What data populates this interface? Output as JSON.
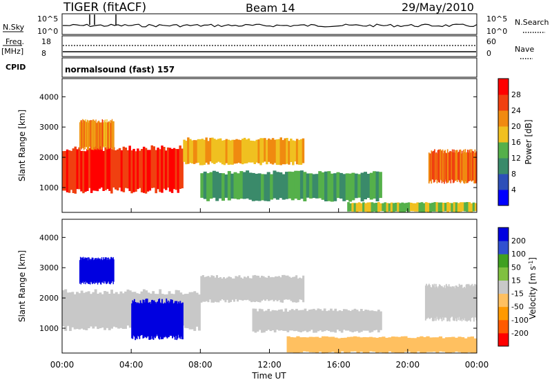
{
  "header": {
    "title": "TIGER (fitACF)",
    "beam": "Beam 14",
    "date": "29/May/2010"
  },
  "strips": {
    "nsky_label": "N.Sky",
    "nsky_tick_hi": "10^5",
    "nsky_tick_lo": "10^0",
    "nsearch_label": "N.Search",
    "freq_label_1": "Freq.",
    "freq_label_2": "[MHz]",
    "freq_tick_hi": "18",
    "freq_tick_lo": "8",
    "nave_tick_hi": "60",
    "nave_tick_lo": "0",
    "nave_label": "Nave",
    "cpid_label": "CPID",
    "cpid_value": "normalsound (fast) 157"
  },
  "colors": {
    "power_scale": [
      "#0000ff",
      "#2d4fb8",
      "#3a8a6a",
      "#55b04a",
      "#f0c020",
      "#f08a10",
      "#f04010",
      "#ff0000"
    ],
    "velocity_scale": [
      "#ff0000",
      "#ff5a00",
      "#ff9900",
      "#ffc060",
      "#c8c8c8",
      "#80c040",
      "#40a020",
      "#3050d0",
      "#0000e0"
    ]
  },
  "chart_data": [
    {
      "type": "heatmap",
      "title": "",
      "ylabel": "Slant Range [km]",
      "xlabel": "",
      "xlim": [
        "00:00",
        "24:00"
      ],
      "ylim": [
        180,
        4600
      ],
      "yticks": [
        "1000",
        "2000",
        "3000",
        "4000"
      ],
      "colorbar": {
        "label": "Power [dB]",
        "ticks": [
          "4",
          "8",
          "12",
          "16",
          "20",
          "24",
          "28"
        ],
        "range": [
          0,
          32
        ]
      },
      "regions": [
        {
          "t0": 0.0,
          "t1": 7.0,
          "r0": 900,
          "r1": 2300,
          "level": 28
        },
        {
          "t0": 7.0,
          "t1": 14.0,
          "r0": 1800,
          "r1": 2600,
          "level": 20
        },
        {
          "t0": 8.0,
          "t1": 18.5,
          "r0": 600,
          "r1": 1500,
          "level": 12
        },
        {
          "t0": 16.5,
          "t1": 24.0,
          "r0": 200,
          "r1": 500,
          "level": 16
        },
        {
          "t0": 21.2,
          "t1": 24.0,
          "r0": 1200,
          "r1": 2200,
          "level": 24
        },
        {
          "t0": 1.0,
          "t1": 3.0,
          "r0": 2300,
          "r1": 3200,
          "level": 22
        }
      ]
    },
    {
      "type": "heatmap",
      "title": "",
      "ylabel": "Slant Range [km]",
      "xlabel": "Time UT",
      "xlim": [
        "00:00",
        "24:00"
      ],
      "ylim": [
        180,
        4600
      ],
      "xticks": [
        "00:00",
        "04:00",
        "08:00",
        "12:00",
        "16:00",
        "20:00",
        "00:00"
      ],
      "yticks": [
        "1000",
        "2000",
        "3000",
        "4000"
      ],
      "colorbar": {
        "label": "Velocity [m s^-1]",
        "ticks": [
          "200",
          "100",
          "50",
          "15",
          "-15",
          "-50",
          "-100",
          "-200"
        ],
        "range": [
          -250,
          250
        ]
      },
      "regions": [
        {
          "t0": 0.0,
          "t1": 8.0,
          "r0": 1000,
          "r1": 2200,
          "level": 0
        },
        {
          "t0": 1.0,
          "t1": 3.0,
          "r0": 2500,
          "r1": 3300,
          "level": 200
        },
        {
          "t0": 4.0,
          "t1": 7.0,
          "r0": 700,
          "r1": 1900,
          "level": 200
        },
        {
          "t0": 8.0,
          "t1": 14.0,
          "r0": 1900,
          "r1": 2700,
          "level": 0
        },
        {
          "t0": 11.0,
          "t1": 18.5,
          "r0": 900,
          "r1": 1600,
          "level": 0
        },
        {
          "t0": 13.0,
          "t1": 24.0,
          "r0": 200,
          "r1": 700,
          "level": -60
        },
        {
          "t0": 21.0,
          "t1": 24.0,
          "r0": 1300,
          "r1": 2400,
          "level": 0
        }
      ]
    }
  ]
}
